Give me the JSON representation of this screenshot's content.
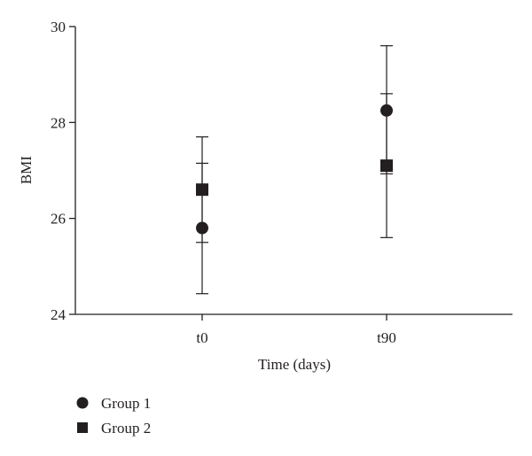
{
  "chart_data": {
    "type": "scatter",
    "title": "",
    "xlabel": "Time (days)",
    "ylabel": "BMI",
    "categories": [
      "t0",
      "t90"
    ],
    "ylim": [
      24,
      30
    ],
    "yticks": [
      24,
      26,
      28,
      30
    ],
    "grid": false,
    "legend_position": "bottom-left",
    "error_bars": true,
    "series": [
      {
        "name": "Group 1",
        "marker": "circle",
        "color": "#231f20",
        "values": [
          25.8,
          28.25
        ],
        "error_low": [
          24.43,
          26.93
        ],
        "error_high": [
          27.15,
          29.6
        ]
      },
      {
        "name": "Group 2",
        "marker": "square",
        "color": "#231f20",
        "values": [
          26.6,
          27.1
        ],
        "error_low": [
          25.5,
          25.6
        ],
        "error_high": [
          27.7,
          28.6
        ]
      }
    ]
  }
}
